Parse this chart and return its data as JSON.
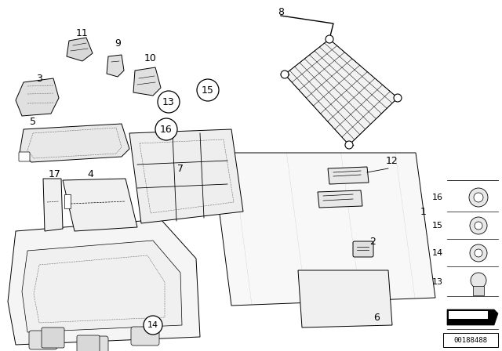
{
  "background_color": "#ffffff",
  "part_number": "00188488",
  "figsize": [
    6.4,
    4.48
  ],
  "dpi": 100,
  "net_color": "#f0f0f0",
  "part_color": "#f5f5f5",
  "lw": 0.7
}
